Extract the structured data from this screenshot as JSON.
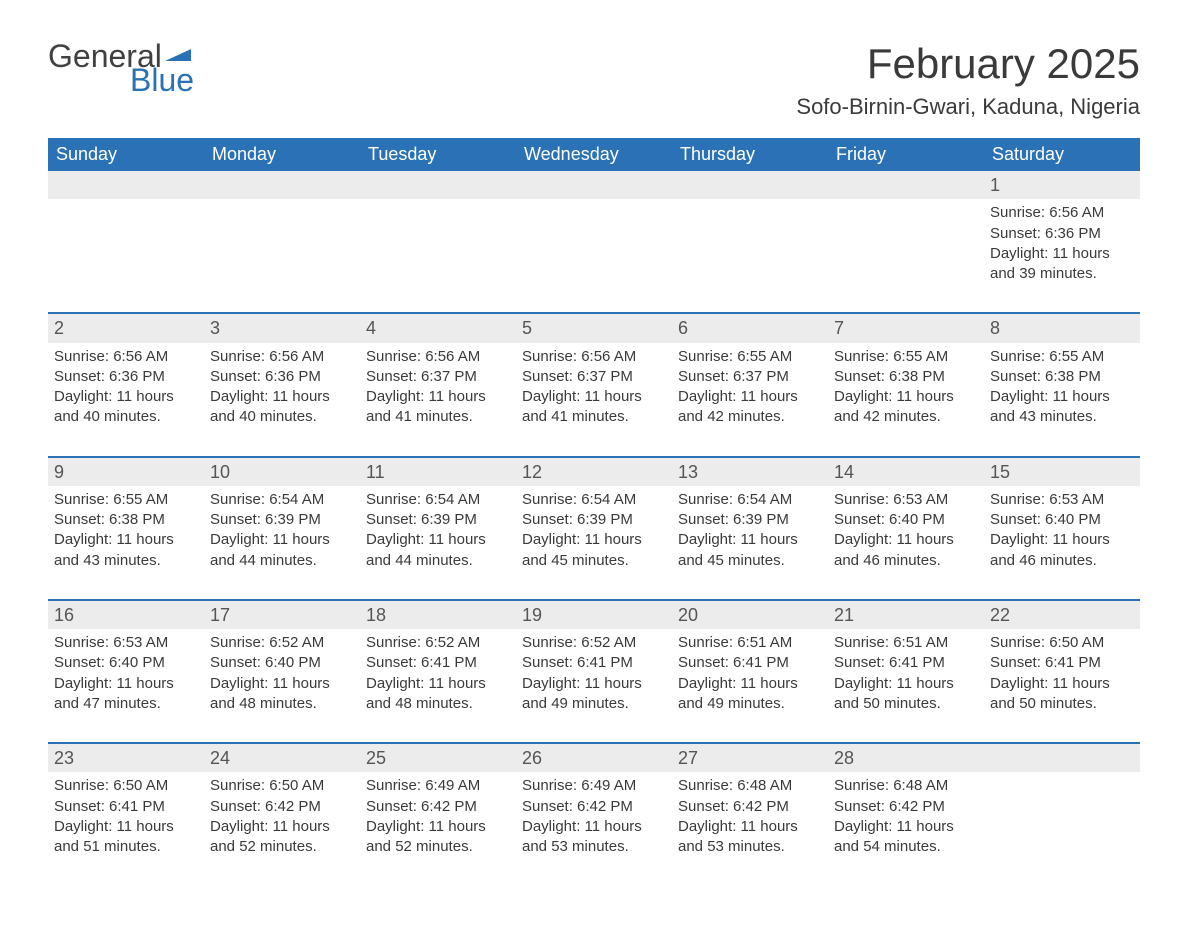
{
  "logo": {
    "general": "General",
    "blue": "Blue",
    "flag_color": "#2a72b5"
  },
  "title": "February 2025",
  "location": "Sofo-Birnin-Gwari, Kaduna, Nigeria",
  "colors": {
    "header_bg": "#2a72b5",
    "header_text": "#ffffff",
    "daynum_bg": "#ececec",
    "text": "#3a3a3a",
    "row_border": "#2a72b5"
  },
  "day_headers": [
    "Sunday",
    "Monday",
    "Tuesday",
    "Wednesday",
    "Thursday",
    "Friday",
    "Saturday"
  ],
  "weeks": [
    [
      null,
      null,
      null,
      null,
      null,
      null,
      {
        "n": "1",
        "sunrise": "Sunrise: 6:56 AM",
        "sunset": "Sunset: 6:36 PM",
        "d1": "Daylight: 11 hours",
        "d2": "and 39 minutes."
      }
    ],
    [
      {
        "n": "2",
        "sunrise": "Sunrise: 6:56 AM",
        "sunset": "Sunset: 6:36 PM",
        "d1": "Daylight: 11 hours",
        "d2": "and 40 minutes."
      },
      {
        "n": "3",
        "sunrise": "Sunrise: 6:56 AM",
        "sunset": "Sunset: 6:36 PM",
        "d1": "Daylight: 11 hours",
        "d2": "and 40 minutes."
      },
      {
        "n": "4",
        "sunrise": "Sunrise: 6:56 AM",
        "sunset": "Sunset: 6:37 PM",
        "d1": "Daylight: 11 hours",
        "d2": "and 41 minutes."
      },
      {
        "n": "5",
        "sunrise": "Sunrise: 6:56 AM",
        "sunset": "Sunset: 6:37 PM",
        "d1": "Daylight: 11 hours",
        "d2": "and 41 minutes."
      },
      {
        "n": "6",
        "sunrise": "Sunrise: 6:55 AM",
        "sunset": "Sunset: 6:37 PM",
        "d1": "Daylight: 11 hours",
        "d2": "and 42 minutes."
      },
      {
        "n": "7",
        "sunrise": "Sunrise: 6:55 AM",
        "sunset": "Sunset: 6:38 PM",
        "d1": "Daylight: 11 hours",
        "d2": "and 42 minutes."
      },
      {
        "n": "8",
        "sunrise": "Sunrise: 6:55 AM",
        "sunset": "Sunset: 6:38 PM",
        "d1": "Daylight: 11 hours",
        "d2": "and 43 minutes."
      }
    ],
    [
      {
        "n": "9",
        "sunrise": "Sunrise: 6:55 AM",
        "sunset": "Sunset: 6:38 PM",
        "d1": "Daylight: 11 hours",
        "d2": "and 43 minutes."
      },
      {
        "n": "10",
        "sunrise": "Sunrise: 6:54 AM",
        "sunset": "Sunset: 6:39 PM",
        "d1": "Daylight: 11 hours",
        "d2": "and 44 minutes."
      },
      {
        "n": "11",
        "sunrise": "Sunrise: 6:54 AM",
        "sunset": "Sunset: 6:39 PM",
        "d1": "Daylight: 11 hours",
        "d2": "and 44 minutes."
      },
      {
        "n": "12",
        "sunrise": "Sunrise: 6:54 AM",
        "sunset": "Sunset: 6:39 PM",
        "d1": "Daylight: 11 hours",
        "d2": "and 45 minutes."
      },
      {
        "n": "13",
        "sunrise": "Sunrise: 6:54 AM",
        "sunset": "Sunset: 6:39 PM",
        "d1": "Daylight: 11 hours",
        "d2": "and 45 minutes."
      },
      {
        "n": "14",
        "sunrise": "Sunrise: 6:53 AM",
        "sunset": "Sunset: 6:40 PM",
        "d1": "Daylight: 11 hours",
        "d2": "and 46 minutes."
      },
      {
        "n": "15",
        "sunrise": "Sunrise: 6:53 AM",
        "sunset": "Sunset: 6:40 PM",
        "d1": "Daylight: 11 hours",
        "d2": "and 46 minutes."
      }
    ],
    [
      {
        "n": "16",
        "sunrise": "Sunrise: 6:53 AM",
        "sunset": "Sunset: 6:40 PM",
        "d1": "Daylight: 11 hours",
        "d2": "and 47 minutes."
      },
      {
        "n": "17",
        "sunrise": "Sunrise: 6:52 AM",
        "sunset": "Sunset: 6:40 PM",
        "d1": "Daylight: 11 hours",
        "d2": "and 48 minutes."
      },
      {
        "n": "18",
        "sunrise": "Sunrise: 6:52 AM",
        "sunset": "Sunset: 6:41 PM",
        "d1": "Daylight: 11 hours",
        "d2": "and 48 minutes."
      },
      {
        "n": "19",
        "sunrise": "Sunrise: 6:52 AM",
        "sunset": "Sunset: 6:41 PM",
        "d1": "Daylight: 11 hours",
        "d2": "and 49 minutes."
      },
      {
        "n": "20",
        "sunrise": "Sunrise: 6:51 AM",
        "sunset": "Sunset: 6:41 PM",
        "d1": "Daylight: 11 hours",
        "d2": "and 49 minutes."
      },
      {
        "n": "21",
        "sunrise": "Sunrise: 6:51 AM",
        "sunset": "Sunset: 6:41 PM",
        "d1": "Daylight: 11 hours",
        "d2": "and 50 minutes."
      },
      {
        "n": "22",
        "sunrise": "Sunrise: 6:50 AM",
        "sunset": "Sunset: 6:41 PM",
        "d1": "Daylight: 11 hours",
        "d2": "and 50 minutes."
      }
    ],
    [
      {
        "n": "23",
        "sunrise": "Sunrise: 6:50 AM",
        "sunset": "Sunset: 6:41 PM",
        "d1": "Daylight: 11 hours",
        "d2": "and 51 minutes."
      },
      {
        "n": "24",
        "sunrise": "Sunrise: 6:50 AM",
        "sunset": "Sunset: 6:42 PM",
        "d1": "Daylight: 11 hours",
        "d2": "and 52 minutes."
      },
      {
        "n": "25",
        "sunrise": "Sunrise: 6:49 AM",
        "sunset": "Sunset: 6:42 PM",
        "d1": "Daylight: 11 hours",
        "d2": "and 52 minutes."
      },
      {
        "n": "26",
        "sunrise": "Sunrise: 6:49 AM",
        "sunset": "Sunset: 6:42 PM",
        "d1": "Daylight: 11 hours",
        "d2": "and 53 minutes."
      },
      {
        "n": "27",
        "sunrise": "Sunrise: 6:48 AM",
        "sunset": "Sunset: 6:42 PM",
        "d1": "Daylight: 11 hours",
        "d2": "and 53 minutes."
      },
      {
        "n": "28",
        "sunrise": "Sunrise: 6:48 AM",
        "sunset": "Sunset: 6:42 PM",
        "d1": "Daylight: 11 hours",
        "d2": "and 54 minutes."
      },
      null
    ]
  ]
}
